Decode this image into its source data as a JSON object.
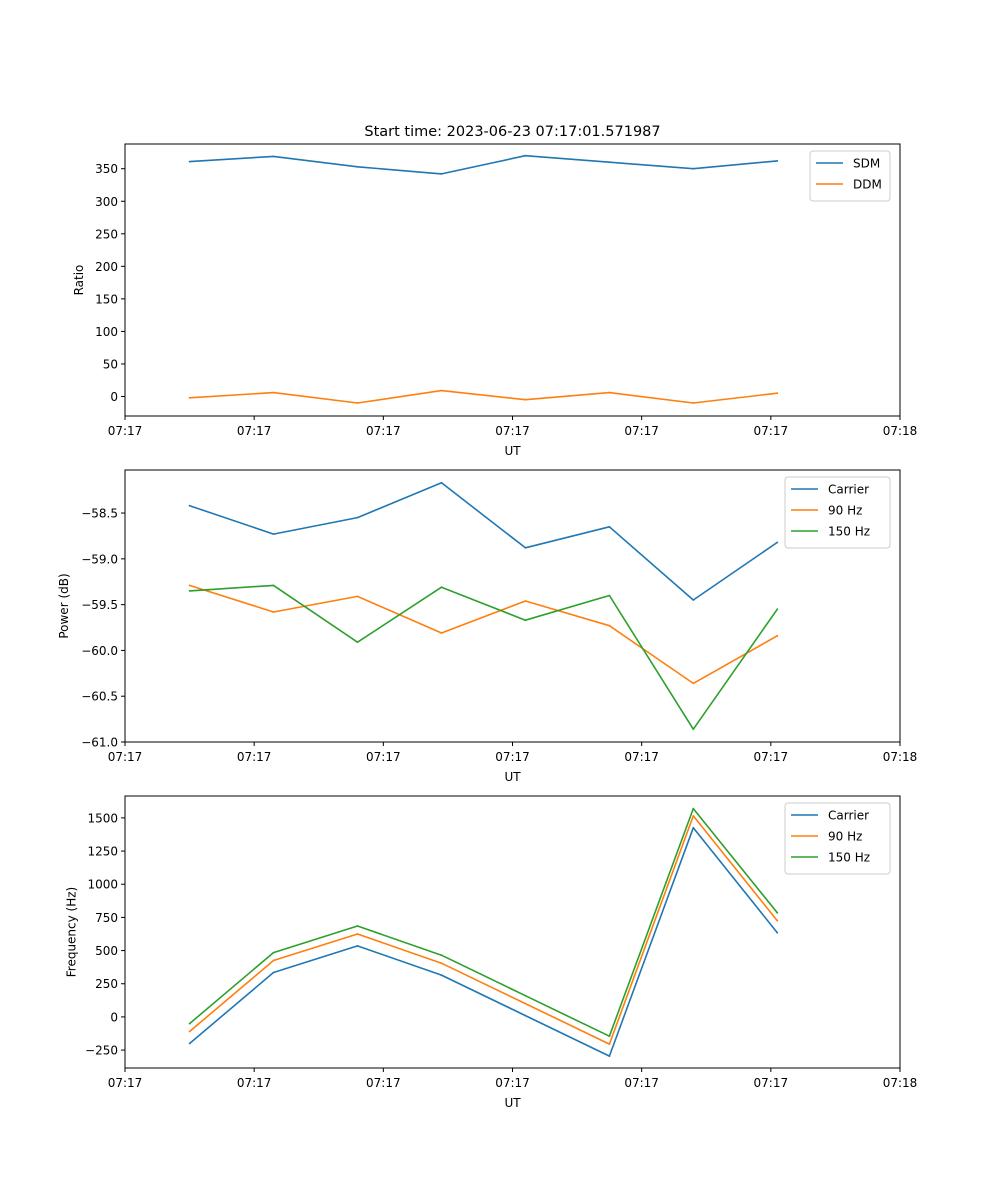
{
  "title": "Start time: 2023-06-23 07:17:01.571987",
  "chart_data": [
    {
      "type": "line",
      "xlabel": "UT",
      "ylabel": "Ratio",
      "xlim": [
        0,
        30
      ],
      "ylim": [
        -30,
        388
      ],
      "x": [
        2.5,
        5.75,
        9,
        12.25,
        15.5,
        18.75,
        22,
        25.25
      ],
      "x_ticks": [
        0,
        5,
        10,
        15,
        20,
        25,
        30
      ],
      "x_tick_labels": [
        "07:17",
        "07:17",
        "07:17",
        "07:17",
        "07:17",
        "07:17",
        "07:18"
      ],
      "y_ticks": [
        0,
        50,
        100,
        150,
        200,
        250,
        300,
        350
      ],
      "y_tick_labels": [
        "0",
        "50",
        "100",
        "150",
        "200",
        "250",
        "300",
        "350"
      ],
      "legend_position": "top-right",
      "grid": false,
      "series": [
        {
          "name": "SDM",
          "color": "#1f77b4",
          "values": [
            361,
            369,
            353,
            342,
            370,
            360,
            350,
            362
          ]
        },
        {
          "name": "DDM",
          "color": "#ff7f0e",
          "values": [
            -2,
            6,
            -10,
            9,
            -5,
            6,
            -10,
            5
          ]
        }
      ]
    },
    {
      "type": "line",
      "xlabel": "UT",
      "ylabel": "Power (dB)",
      "xlim": [
        0,
        30
      ],
      "ylim": [
        -61.0,
        -58.03
      ],
      "x": [
        2.5,
        5.75,
        9,
        12.25,
        15.5,
        18.75,
        22,
        25.25
      ],
      "x_ticks": [
        0,
        5,
        10,
        15,
        20,
        25,
        30
      ],
      "x_tick_labels": [
        "07:17",
        "07:17",
        "07:17",
        "07:17",
        "07:17",
        "07:17",
        "07:18"
      ],
      "y_ticks": [
        -61.0,
        -60.5,
        -60.0,
        -59.5,
        -59.0,
        -58.5
      ],
      "y_tick_labels": [
        "−61.0",
        "−60.5",
        "−60.0",
        "−59.5",
        "−59.0",
        "−58.5"
      ],
      "legend_position": "top-right",
      "grid": false,
      "series": [
        {
          "name": "Carrier",
          "color": "#1f77b4",
          "values": [
            -58.42,
            -58.73,
            -58.55,
            -58.17,
            -58.88,
            -58.65,
            -59.45,
            -58.82
          ]
        },
        {
          "name": "90 Hz",
          "color": "#ff7f0e",
          "values": [
            -59.29,
            -59.58,
            -59.41,
            -59.81,
            -59.46,
            -59.73,
            -60.36,
            -59.84
          ]
        },
        {
          "name": "150 Hz",
          "color": "#2ca02c",
          "values": [
            -59.35,
            -59.29,
            -59.91,
            -59.31,
            -59.67,
            -59.4,
            -60.86,
            -59.55
          ]
        }
      ]
    },
    {
      "type": "line",
      "xlabel": "UT",
      "ylabel": "Frequency (Hz)",
      "xlim": [
        0,
        30
      ],
      "ylim": [
        -385,
        1665
      ],
      "x": [
        2.5,
        5.75,
        9,
        12.25,
        15.5,
        18.75,
        22,
        25.25
      ],
      "x_ticks": [
        0,
        5,
        10,
        15,
        20,
        25,
        30
      ],
      "x_tick_labels": [
        "07:17",
        "07:17",
        "07:17",
        "07:17",
        "07:17",
        "07:17",
        "07:18"
      ],
      "y_ticks": [
        -250,
        0,
        250,
        500,
        750,
        1000,
        1250,
        1500
      ],
      "y_tick_labels": [
        "−250",
        "0",
        "250",
        "500",
        "750",
        "1000",
        "1250",
        "1500"
      ],
      "legend_position": "top-right",
      "grid": false,
      "series": [
        {
          "name": "Carrier",
          "color": "#1f77b4",
          "values": [
            -200,
            335,
            535,
            315,
            10,
            -295,
            1425,
            635
          ]
        },
        {
          "name": "90 Hz",
          "color": "#ff7f0e",
          "values": [
            -110,
            425,
            625,
            405,
            100,
            -205,
            1515,
            725
          ]
        },
        {
          "name": "150 Hz",
          "color": "#2ca02c",
          "values": [
            -50,
            485,
            685,
            465,
            160,
            -145,
            1570,
            785
          ]
        }
      ]
    }
  ]
}
